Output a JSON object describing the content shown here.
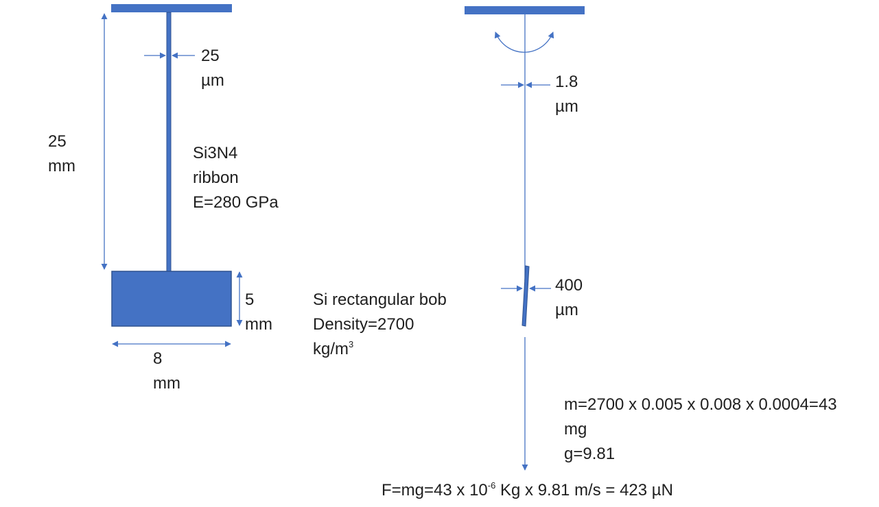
{
  "left_view": {
    "ribbon_width": [
      "25",
      "µm"
    ],
    "ribbon_length": [
      "25",
      "mm"
    ],
    "ribbon_text": [
      "Si3N4",
      "ribbon",
      "E=280 GPa"
    ],
    "bob_height": [
      "5",
      "mm"
    ],
    "bob_width": [
      "8",
      "mm"
    ]
  },
  "bob_text": {
    "line1": "Si rectangular bob",
    "line2": "Density=2700",
    "line3_base": "kg/m",
    "line3_sup": "3"
  },
  "right_view": {
    "fiber_width": [
      "1.8",
      "µm"
    ],
    "bob_thickness": [
      "400",
      "µm"
    ]
  },
  "calc": {
    "mass_line": "m=2700 x 0.005 x 0.008 x 0.0004=43",
    "mass_unit": "mg",
    "g_line": "g=9.81",
    "force_pre": "F=mg=43 x 10",
    "force_sup": "-6",
    "force_post": " Kg x 9.81 m/s = 423 µN"
  },
  "colors": {
    "fill": "#4472c4",
    "stroke": "#2f528f",
    "arrow": "#4472c4"
  }
}
